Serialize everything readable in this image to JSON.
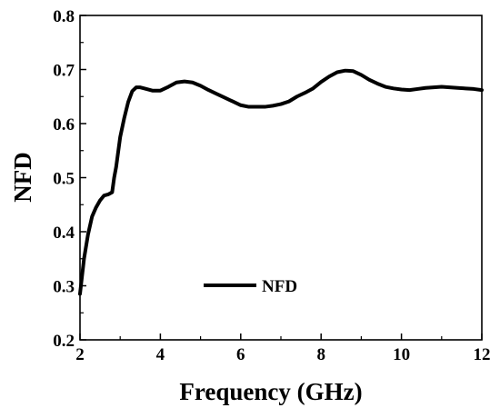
{
  "chart_data": {
    "type": "line",
    "xlabel": "Frequency (GHz)",
    "ylabel": "NFD",
    "xlim": [
      2,
      12
    ],
    "ylim": [
      0.2,
      0.8
    ],
    "xticks": [
      "2",
      "4",
      "6",
      "8",
      "10",
      "12"
    ],
    "yticks": [
      "0.2",
      "0.3",
      "0.4",
      "0.5",
      "0.6",
      "0.7",
      "0.8"
    ],
    "grid": false,
    "legend": {
      "position": "bottom-center",
      "entries": [
        "NFD"
      ]
    },
    "series": [
      {
        "name": "NFD",
        "color": "#000000",
        "x": [
          2.0,
          2.1,
          2.2,
          2.3,
          2.4,
          2.5,
          2.6,
          2.7,
          2.8,
          2.85,
          2.9,
          3.0,
          3.1,
          3.2,
          3.3,
          3.4,
          3.5,
          3.6,
          3.8,
          4.0,
          4.2,
          4.4,
          4.6,
          4.8,
          5.0,
          5.2,
          5.4,
          5.6,
          5.8,
          6.0,
          6.2,
          6.4,
          6.6,
          6.8,
          7.0,
          7.2,
          7.4,
          7.6,
          7.8,
          8.0,
          8.2,
          8.4,
          8.6,
          8.8,
          9.0,
          9.2,
          9.4,
          9.6,
          9.8,
          10.0,
          10.2,
          10.4,
          10.6,
          10.8,
          11.0,
          11.2,
          11.4,
          11.6,
          11.8,
          12.0
        ],
        "values": [
          0.285,
          0.35,
          0.395,
          0.428,
          0.445,
          0.458,
          0.467,
          0.469,
          0.473,
          0.5,
          0.52,
          0.575,
          0.61,
          0.64,
          0.66,
          0.667,
          0.667,
          0.665,
          0.661,
          0.661,
          0.668,
          0.676,
          0.678,
          0.676,
          0.67,
          0.662,
          0.655,
          0.648,
          0.641,
          0.634,
          0.631,
          0.631,
          0.631,
          0.633,
          0.636,
          0.641,
          0.65,
          0.657,
          0.665,
          0.677,
          0.687,
          0.695,
          0.698,
          0.697,
          0.69,
          0.681,
          0.674,
          0.668,
          0.665,
          0.663,
          0.662,
          0.664,
          0.666,
          0.667,
          0.668,
          0.667,
          0.666,
          0.665,
          0.664,
          0.662
        ]
      }
    ]
  }
}
